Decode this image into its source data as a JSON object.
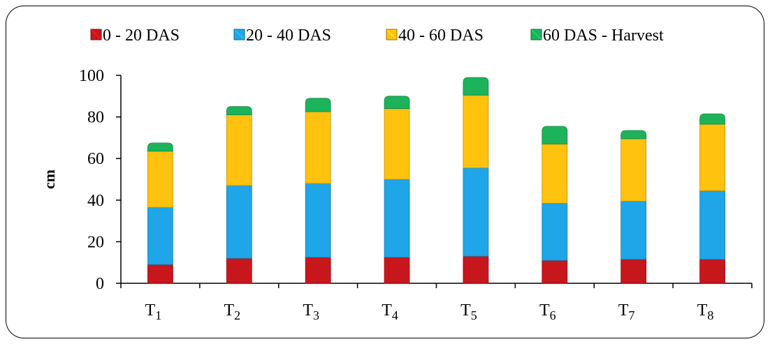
{
  "chart_data": {
    "type": "bar",
    "stacked": true,
    "title": "",
    "xlabel": "",
    "ylabel": "cm",
    "ylim": [
      0,
      100
    ],
    "yticks": [
      0,
      20,
      40,
      60,
      80,
      100
    ],
    "grid": false,
    "legend_position": "top",
    "categories": [
      "T1",
      "T2",
      "T3",
      "T4",
      "T5",
      "T6",
      "T7",
      "T8"
    ],
    "category_subscripts": [
      "1",
      "2",
      "3",
      "4",
      "5",
      "6",
      "7",
      "8"
    ],
    "series": [
      {
        "name": "0 - 20 DAS",
        "color": "#c8161d",
        "values": [
          9,
          12,
          12.5,
          12.5,
          13,
          11,
          11.5,
          11.5
        ]
      },
      {
        "name": "20 - 40 DAS",
        "color": "#1ea6e8",
        "values": [
          27.5,
          35,
          35.5,
          37.5,
          42.5,
          27.5,
          28,
          33
        ]
      },
      {
        "name": "40 - 60 DAS",
        "color": "#ffc20e",
        "values": [
          27,
          34,
          34.5,
          34,
          35,
          28.5,
          30,
          32
        ]
      },
      {
        "name": "60 DAS - Harvest",
        "color": "#1db35a",
        "values": [
          4,
          4,
          6.5,
          6,
          8.5,
          8.5,
          4,
          5
        ]
      }
    ]
  }
}
